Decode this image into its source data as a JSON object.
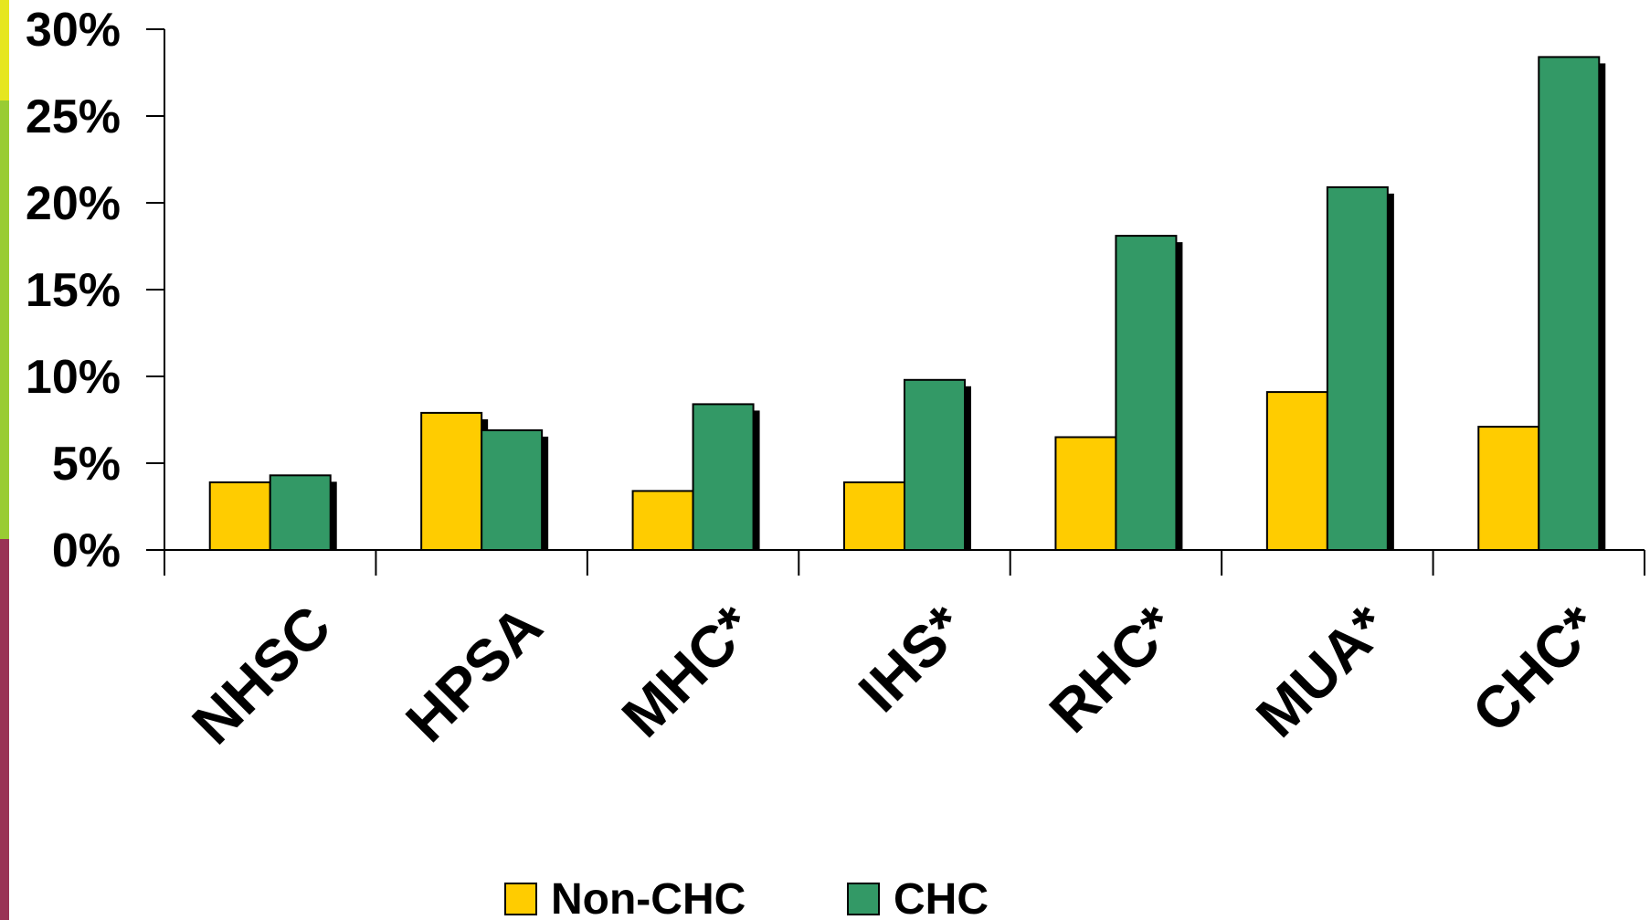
{
  "chart_data": {
    "type": "bar",
    "title": "",
    "xlabel": "",
    "ylabel": "",
    "categories": [
      "NHSC",
      "HPSA",
      "MHC*",
      "IHS*",
      "RHC*",
      "MUA*",
      "CHC*"
    ],
    "series": [
      {
        "name": "Non-CHC",
        "color": "#FFCC00",
        "values": [
          3.9,
          7.9,
          3.4,
          3.9,
          6.5,
          9.1,
          7.1
        ]
      },
      {
        "name": "CHC",
        "color": "#339966",
        "values": [
          4.3,
          6.9,
          8.4,
          9.8,
          18.1,
          20.9,
          28.4
        ]
      }
    ],
    "ylim": [
      0,
      30
    ],
    "yticks": [
      "0%",
      "5%",
      "10%",
      "15%",
      "20%",
      "25%",
      "30%"
    ],
    "y_tick_values": [
      0,
      5,
      10,
      15,
      20,
      25,
      30
    ],
    "grid": false,
    "legend_position": "bottom"
  },
  "decor": {
    "left_stripe_colors": [
      "#e6e61f",
      "#99cc33",
      "#993355"
    ]
  }
}
